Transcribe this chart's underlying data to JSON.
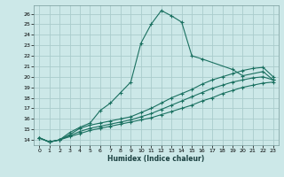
{
  "xlabel": "Humidex (Indice chaleur)",
  "bg_color": "#cce8e8",
  "grid_color": "#aacccc",
  "line_color": "#1a7060",
  "xlim": [
    -0.5,
    23.5
  ],
  "ylim": [
    13.5,
    26.8
  ],
  "xticks": [
    0,
    1,
    2,
    3,
    4,
    5,
    6,
    7,
    8,
    9,
    10,
    11,
    12,
    13,
    14,
    15,
    16,
    17,
    18,
    19,
    20,
    21,
    22,
    23
  ],
  "yticks": [
    14,
    15,
    16,
    17,
    18,
    19,
    20,
    21,
    22,
    23,
    24,
    25,
    26
  ],
  "line1_y": [
    14.2,
    13.8,
    14.0,
    14.7,
    15.2,
    15.6,
    16.8,
    17.5,
    18.5,
    19.5,
    23.2,
    25.0,
    26.3,
    25.8,
    25.2,
    22.0,
    21.7,
    null,
    null,
    20.7,
    20.1,
    null,
    20.5,
    19.7
  ],
  "line2_y": [
    14.2,
    13.8,
    14.0,
    14.5,
    15.1,
    15.4,
    15.6,
    15.8,
    16.0,
    16.2,
    16.6,
    17.0,
    17.5,
    18.0,
    18.4,
    18.8,
    19.3,
    19.7,
    20.0,
    20.3,
    20.6,
    20.8,
    20.9,
    20.0
  ],
  "line3_y": [
    14.2,
    13.8,
    14.0,
    14.4,
    14.8,
    15.1,
    15.3,
    15.5,
    15.7,
    15.9,
    16.2,
    16.5,
    16.9,
    17.3,
    17.7,
    18.1,
    18.5,
    18.9,
    19.2,
    19.5,
    19.7,
    19.9,
    20.0,
    19.7
  ],
  "line4_y": [
    14.2,
    13.8,
    14.0,
    14.3,
    14.6,
    14.9,
    15.1,
    15.3,
    15.5,
    15.7,
    15.9,
    16.1,
    16.4,
    16.7,
    17.0,
    17.3,
    17.7,
    18.0,
    18.4,
    18.7,
    19.0,
    19.2,
    19.4,
    19.5
  ]
}
